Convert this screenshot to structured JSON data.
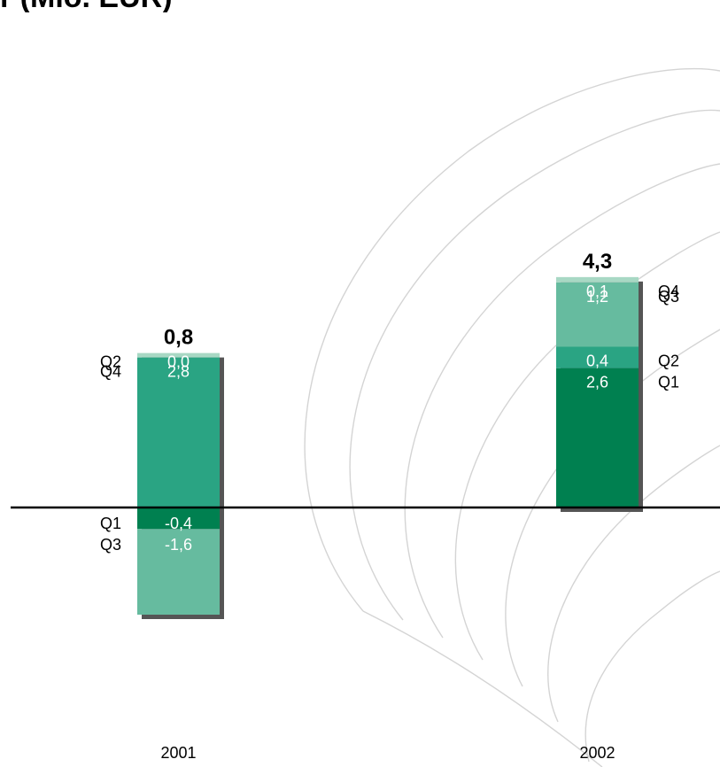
{
  "chart_title_fragment": "r (Mio. EUR)",
  "colors": {
    "Q1": "#008050",
    "Q2": "#2aa483",
    "Q3": "#66bb9f",
    "Q4": "#a8d8c4",
    "shadow": "#555555",
    "axis": "#000000",
    "watermark": "#d4d4d4"
  },
  "chart_data": {
    "type": "bar",
    "stacked": true,
    "title": "r (Mio. EUR)",
    "xlabel": "",
    "ylabel": "",
    "categories": [
      "2001",
      "2002"
    ],
    "ylim": [
      -4.9,
      10.8
    ],
    "grid": false,
    "legend": "none",
    "columns": [
      {
        "category": "2001",
        "total": "0,8",
        "segments": [
          {
            "quarter": "Q4",
            "value": 2.8,
            "label": "2,8",
            "color": "Q4_2001"
          },
          {
            "quarter": "Q2",
            "value": 0.0,
            "label": "0,0",
            "color": "Q2_2001"
          },
          {
            "quarter": "Q1",
            "value": -0.4,
            "label": "-0,4",
            "color": "Q1"
          },
          {
            "quarter": "Q3",
            "value": -1.6,
            "label": "-1,6",
            "color": "Q3"
          }
        ]
      },
      {
        "category": "2002",
        "total": "4,3",
        "segments": [
          {
            "quarter": "Q1",
            "value": 2.6,
            "label": "2,6",
            "color": "Q1"
          },
          {
            "quarter": "Q2",
            "value": 0.4,
            "label": "0,4",
            "color": "Q2"
          },
          {
            "quarter": "Q3",
            "value": 1.2,
            "label": "1,2",
            "color": "Q3"
          },
          {
            "quarter": "Q4",
            "value": 0.1,
            "label": "0,1",
            "color": "Q4"
          }
        ]
      }
    ]
  }
}
